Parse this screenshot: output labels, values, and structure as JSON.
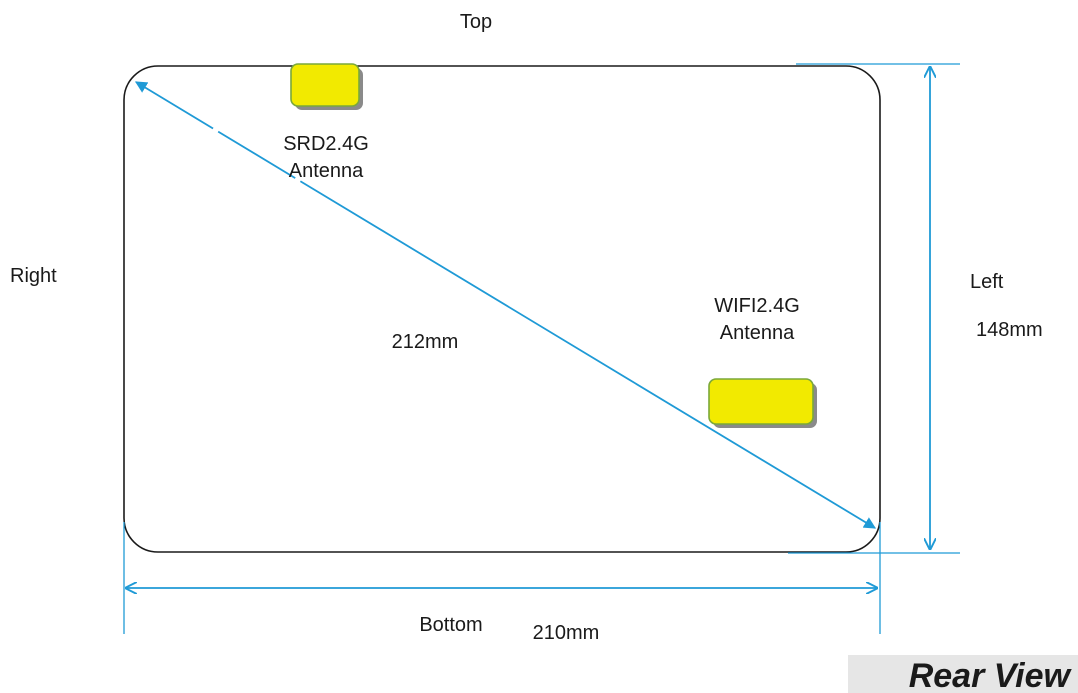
{
  "diagram": {
    "sides": {
      "top": "Top",
      "bottom": "Bottom",
      "left": "Left",
      "right": "Right"
    },
    "dimensions": {
      "width": "210mm",
      "height": "148mm",
      "diagonal": "212mm"
    },
    "antennas": {
      "srd": {
        "line1": "SRD2.4G",
        "line2": "Antenna"
      },
      "wifi": {
        "line1": "WIFI2.4G",
        "line2": "Antenna"
      }
    },
    "view_title": "Rear View",
    "colors": {
      "dimension_lines": "#1f9ad6",
      "antenna_fill": "#f2ea00",
      "antenna_border": "#7aa83a",
      "antenna_shadow": "#8a8a8a",
      "outline": "#1a1a1a"
    }
  }
}
